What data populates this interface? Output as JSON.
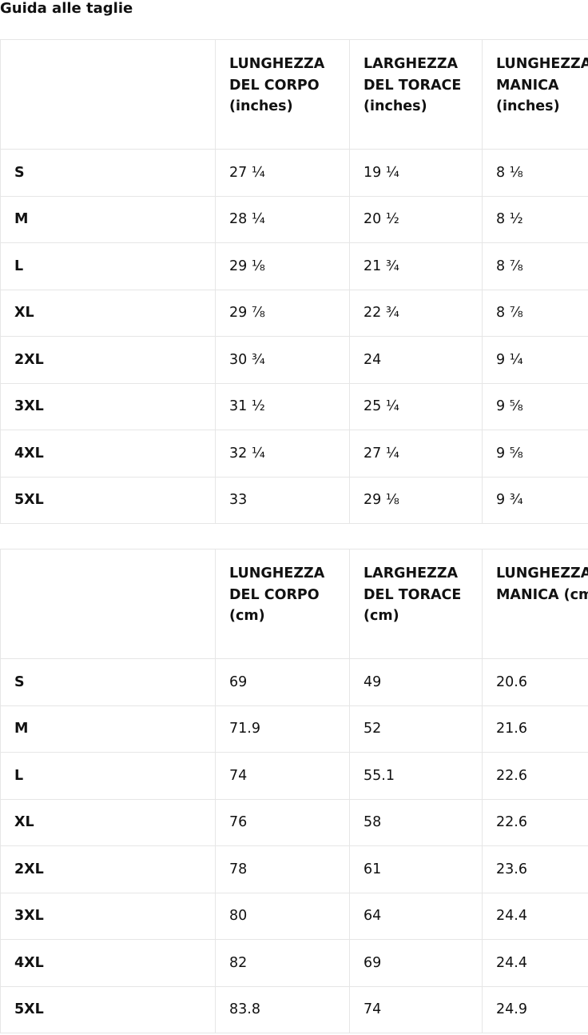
{
  "header": {
    "title": "Guida alle taglie"
  },
  "tables": [
    {
      "columns": [
        "LUNGHEZZA DEL CORPO (inches)",
        "LARGHEZZA DEL TORACE (inches)",
        "LUNGHEZZA MANICA (inches)"
      ],
      "rows": [
        [
          "S",
          "27 ¼",
          "19 ¼",
          "8 ⅛"
        ],
        [
          "M",
          "28 ¼",
          "20 ½",
          "8 ½"
        ],
        [
          "L",
          "29 ⅛",
          "21 ¾",
          "8 ⅞"
        ],
        [
          "XL",
          "29 ⅞",
          "22 ¾",
          "8 ⅞"
        ],
        [
          "2XL",
          "30 ¾",
          "24",
          "9 ¼"
        ],
        [
          "3XL",
          "31 ½",
          "25 ¼",
          "9 ⅝"
        ],
        [
          "4XL",
          "32 ¼",
          "27 ¼",
          "9 ⅝"
        ],
        [
          "5XL",
          "33",
          "29 ⅛",
          "9 ¾"
        ]
      ]
    },
    {
      "columns": [
        "LUNGHEZZA DEL CORPO (cm)",
        "LARGHEZZA DEL TORACE (cm)",
        "LUNGHEZZA MANICA (cm)"
      ],
      "rows": [
        [
          "S",
          "69",
          "49",
          "20.6"
        ],
        [
          "M",
          "71.9",
          "52",
          "21.6"
        ],
        [
          "L",
          "74",
          "55.1",
          "22.6"
        ],
        [
          "XL",
          "76",
          "58",
          "22.6"
        ],
        [
          "2XL",
          "78",
          "61",
          "23.6"
        ],
        [
          "3XL",
          "80",
          "64",
          "24.4"
        ],
        [
          "4XL",
          "82",
          "69",
          "24.4"
        ],
        [
          "5XL",
          "83.8",
          "74",
          "24.9"
        ]
      ]
    }
  ]
}
